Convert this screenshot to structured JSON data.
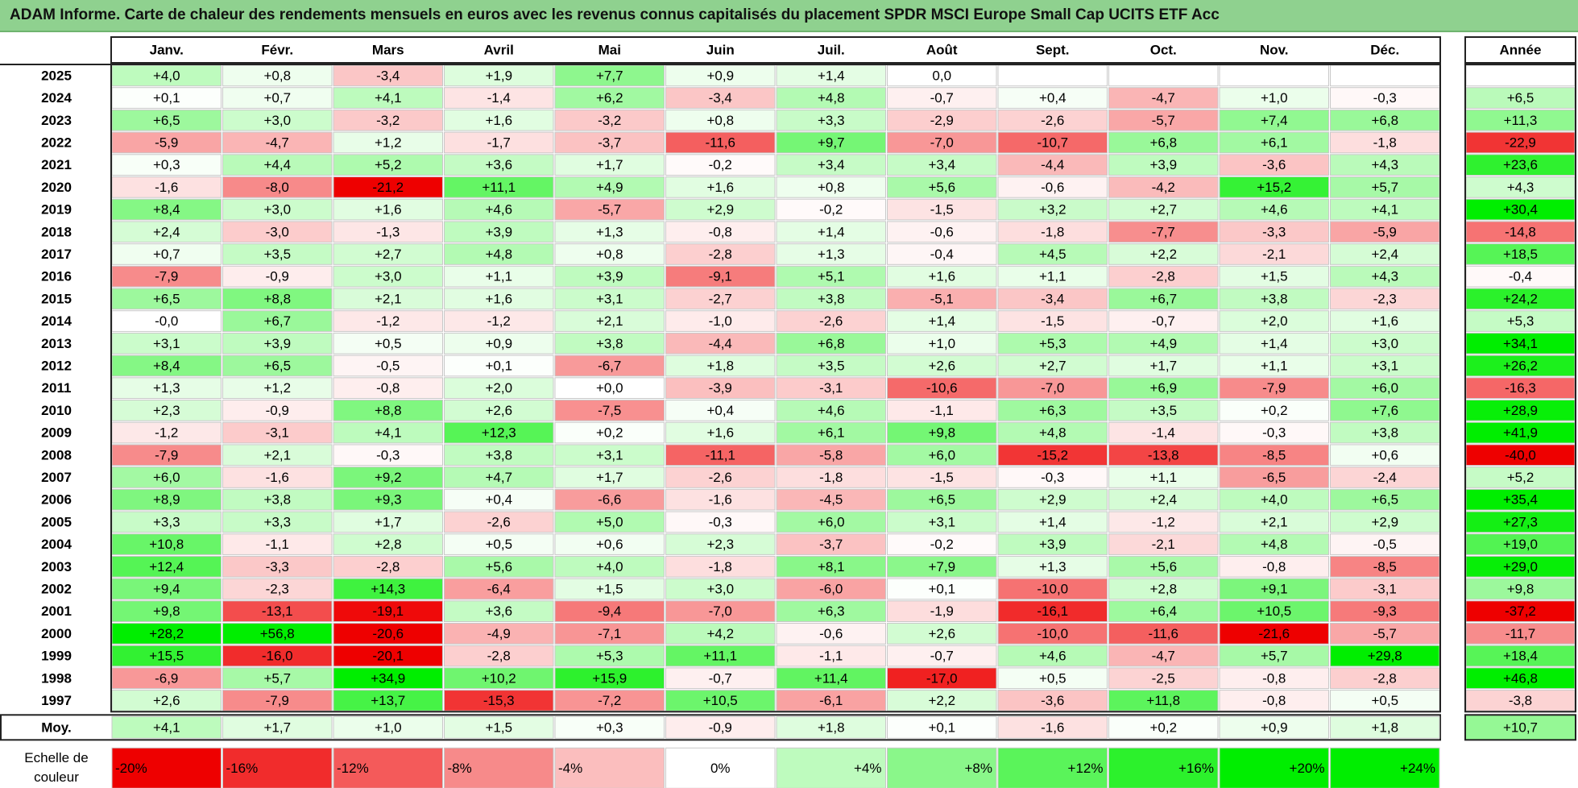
{
  "title": "ADAM Informe. Carte de chaleur des rendements mensuels en euros avec les revenus connus capitalisés du placement SPDR MSCI Europe Small Cap UCITS ETF Acc",
  "chart_data": {
    "type": "heatmap",
    "months": [
      "Janv.",
      "Févr.",
      "Mars",
      "Avril",
      "Mai",
      "Juin",
      "Juil.",
      "Août",
      "Sept.",
      "Oct.",
      "Nov.",
      "Déc."
    ],
    "year_column_label": "Année",
    "average_row_label": "Moy.",
    "rows": [
      {
        "year": "2025",
        "values": [
          "+4,0",
          "+0,8",
          "-3,4",
          "+1,9",
          "+7,7",
          "+0,9",
          "+1,4",
          "0,0",
          "",
          "",
          "",
          ""
        ],
        "annual": ""
      },
      {
        "year": "2024",
        "values": [
          "+0,1",
          "+0,7",
          "+4,1",
          "-1,4",
          "+6,2",
          "-3,4",
          "+4,8",
          "-0,7",
          "+0,4",
          "-4,7",
          "+1,0",
          "-0,3"
        ],
        "annual": "+6,5"
      },
      {
        "year": "2023",
        "values": [
          "+6,5",
          "+3,0",
          "-3,2",
          "+1,6",
          "-3,2",
          "+0,8",
          "+3,3",
          "-2,9",
          "-2,6",
          "-5,7",
          "+7,4",
          "+6,8"
        ],
        "annual": "+11,3"
      },
      {
        "year": "2022",
        "values": [
          "-5,9",
          "-4,7",
          "+1,2",
          "-1,7",
          "-3,7",
          "-11,6",
          "+9,7",
          "-7,0",
          "-10,7",
          "+6,8",
          "+6,1",
          "-1,8"
        ],
        "annual": "-22,9"
      },
      {
        "year": "2021",
        "values": [
          "+0,3",
          "+4,4",
          "+5,2",
          "+3,6",
          "+1,7",
          "-0,2",
          "+3,4",
          "+3,4",
          "-4,4",
          "+3,9",
          "-3,6",
          "+4,3"
        ],
        "annual": "+23,6"
      },
      {
        "year": "2020",
        "values": [
          "-1,6",
          "-8,0",
          "-21,2",
          "+11,1",
          "+4,9",
          "+1,6",
          "+0,8",
          "+5,6",
          "-0,6",
          "-4,2",
          "+15,2",
          "+5,7"
        ],
        "annual": "+4,3"
      },
      {
        "year": "2019",
        "values": [
          "+8,4",
          "+3,0",
          "+1,6",
          "+4,6",
          "-5,7",
          "+2,9",
          "-0,2",
          "-1,5",
          "+3,2",
          "+2,7",
          "+4,6",
          "+4,1"
        ],
        "annual": "+30,4"
      },
      {
        "year": "2018",
        "values": [
          "+2,4",
          "-3,0",
          "-1,3",
          "+3,9",
          "+1,3",
          "-0,8",
          "+1,4",
          "-0,6",
          "-1,8",
          "-7,7",
          "-3,3",
          "-5,9"
        ],
        "annual": "-14,8"
      },
      {
        "year": "2017",
        "values": [
          "+0,7",
          "+3,5",
          "+2,7",
          "+4,8",
          "+0,8",
          "-2,8",
          "+1,3",
          "-0,4",
          "+4,5",
          "+2,2",
          "-2,1",
          "+2,4"
        ],
        "annual": "+18,5"
      },
      {
        "year": "2016",
        "values": [
          "-7,9",
          "-0,9",
          "+3,0",
          "+1,1",
          "+3,9",
          "-9,1",
          "+5,1",
          "+1,6",
          "+1,1",
          "-2,8",
          "+1,5",
          "+4,3"
        ],
        "annual": "-0,4"
      },
      {
        "year": "2015",
        "values": [
          "+6,5",
          "+8,8",
          "+2,1",
          "+1,6",
          "+3,1",
          "-2,7",
          "+3,8",
          "-5,1",
          "-3,4",
          "+6,7",
          "+3,8",
          "-2,3"
        ],
        "annual": "+24,2"
      },
      {
        "year": "2014",
        "values": [
          "-0,0",
          "+6,7",
          "-1,2",
          "-1,2",
          "+2,1",
          "-1,0",
          "-2,6",
          "+1,4",
          "-1,5",
          "-0,7",
          "+2,0",
          "+1,6"
        ],
        "annual": "+5,3"
      },
      {
        "year": "2013",
        "values": [
          "+3,1",
          "+3,9",
          "+0,5",
          "+0,9",
          "+3,8",
          "-4,4",
          "+6,8",
          "+1,0",
          "+5,3",
          "+4,9",
          "+1,4",
          "+3,0"
        ],
        "annual": "+34,1"
      },
      {
        "year": "2012",
        "values": [
          "+8,4",
          "+6,5",
          "-0,5",
          "+0,1",
          "-6,7",
          "+1,8",
          "+3,5",
          "+2,6",
          "+2,7",
          "+1,7",
          "+1,1",
          "+3,1"
        ],
        "annual": "+26,2"
      },
      {
        "year": "2011",
        "values": [
          "+1,3",
          "+1,2",
          "-0,8",
          "+2,0",
          "+0,0",
          "-3,9",
          "-3,1",
          "-10,6",
          "-7,0",
          "+6,9",
          "-7,9",
          "+6,0"
        ],
        "annual": "-16,3"
      },
      {
        "year": "2010",
        "values": [
          "+2,3",
          "-0,9",
          "+8,8",
          "+2,6",
          "-7,5",
          "+0,4",
          "+4,6",
          "-1,1",
          "+6,3",
          "+3,5",
          "+0,2",
          "+7,6"
        ],
        "annual": "+28,9"
      },
      {
        "year": "2009",
        "values": [
          "-1,2",
          "-3,1",
          "+4,1",
          "+12,3",
          "+0,2",
          "+1,6",
          "+6,1",
          "+9,8",
          "+4,8",
          "-1,4",
          "-0,3",
          "+3,8"
        ],
        "annual": "+41,9"
      },
      {
        "year": "2008",
        "values": [
          "-7,9",
          "+2,1",
          "-0,3",
          "+3,8",
          "+3,1",
          "-11,1",
          "-5,8",
          "+6,0",
          "-15,2",
          "-13,8",
          "-8,5",
          "+0,6"
        ],
        "annual": "-40,0"
      },
      {
        "year": "2007",
        "values": [
          "+6,0",
          "-1,6",
          "+9,2",
          "+4,7",
          "+1,7",
          "-2,6",
          "-1,8",
          "-1,5",
          "-0,3",
          "+1,1",
          "-6,5",
          "-2,4"
        ],
        "annual": "+5,2"
      },
      {
        "year": "2006",
        "values": [
          "+8,9",
          "+3,8",
          "+9,3",
          "+0,4",
          "-6,6",
          "-1,6",
          "-4,5",
          "+6,5",
          "+2,9",
          "+2,4",
          "+4,0",
          "+6,5"
        ],
        "annual": "+35,4"
      },
      {
        "year": "2005",
        "values": [
          "+3,3",
          "+3,3",
          "+1,7",
          "-2,6",
          "+5,0",
          "-0,3",
          "+6,0",
          "+3,1",
          "+1,4",
          "-1,2",
          "+2,1",
          "+2,9"
        ],
        "annual": "+27,3"
      },
      {
        "year": "2004",
        "values": [
          "+10,8",
          "-1,1",
          "+2,8",
          "+0,5",
          "+0,6",
          "+2,3",
          "-3,7",
          "-0,2",
          "+3,9",
          "-2,1",
          "+4,8",
          "-0,5"
        ],
        "annual": "+19,0"
      },
      {
        "year": "2003",
        "values": [
          "+12,4",
          "-3,3",
          "-2,8",
          "+5,6",
          "+4,0",
          "-1,8",
          "+8,1",
          "+7,9",
          "+1,3",
          "+5,6",
          "-0,8",
          "-8,5"
        ],
        "annual": "+29,0"
      },
      {
        "year": "2002",
        "values": [
          "+9,4",
          "-2,3",
          "+14,3",
          "-6,4",
          "+1,5",
          "+3,0",
          "-6,0",
          "+0,1",
          "-10,0",
          "+2,8",
          "+9,1",
          "-3,1"
        ],
        "annual": "+9,8"
      },
      {
        "year": "2001",
        "values": [
          "+9,8",
          "-13,1",
          "-19,1",
          "+3,6",
          "-9,4",
          "-7,0",
          "+6,3",
          "-1,9",
          "-16,1",
          "+6,4",
          "+10,5",
          "-9,3"
        ],
        "annual": "-37,2"
      },
      {
        "year": "2000",
        "values": [
          "+28,2",
          "+56,8",
          "-20,6",
          "-4,9",
          "-7,1",
          "+4,2",
          "-0,6",
          "+2,6",
          "-10,0",
          "-11,6",
          "-21,6",
          "-5,7"
        ],
        "annual": "-11,7"
      },
      {
        "year": "1999",
        "values": [
          "+15,5",
          "-16,0",
          "-20,1",
          "-2,8",
          "+5,3",
          "+11,1",
          "-1,1",
          "-0,7",
          "+4,6",
          "-4,7",
          "+5,7",
          "+29,8"
        ],
        "annual": "+18,4"
      },
      {
        "year": "1998",
        "values": [
          "-6,9",
          "+5,7",
          "+34,9",
          "+10,2",
          "+15,9",
          "-0,7",
          "+11,4",
          "-17,0",
          "+0,5",
          "-2,5",
          "-0,8",
          "-2,8"
        ],
        "annual": "+46,8"
      },
      {
        "year": "1997",
        "values": [
          "+2,6",
          "-7,9",
          "+13,7",
          "-15,3",
          "-7,2",
          "+10,5",
          "-6,1",
          "+2,2",
          "-3,6",
          "+11,8",
          "-0,8",
          "+0,5"
        ],
        "annual": "-3,8"
      }
    ],
    "averages": [
      "+4,1",
      "+1,7",
      "+1,0",
      "+1,5",
      "+0,3",
      "-0,9",
      "+1,8",
      "+0,1",
      "-1,6",
      "+0,2",
      "+0,9",
      "+1,8"
    ],
    "average_annual": "+10,7",
    "scale_label": [
      "Echelle de",
      "couleur"
    ],
    "scale": [
      {
        "label": "-20%",
        "value": -20
      },
      {
        "label": "-16%",
        "value": -16
      },
      {
        "label": "-12%",
        "value": -12
      },
      {
        "label": "-8%",
        "value": -8
      },
      {
        "label": "-4%",
        "value": -4
      },
      {
        "label": "0%",
        "value": 0
      },
      {
        "label": "+4%",
        "value": 4
      },
      {
        "label": "+8%",
        "value": 8
      },
      {
        "label": "+12%",
        "value": 12
      },
      {
        "label": "+16%",
        "value": 16
      },
      {
        "label": "+20%",
        "value": 20
      },
      {
        "label": "+24%",
        "value": 24
      }
    ],
    "colors": {
      "negative_max": "#ee0000",
      "neutral": "#ffffff",
      "positive_max": "#00ee00"
    }
  }
}
